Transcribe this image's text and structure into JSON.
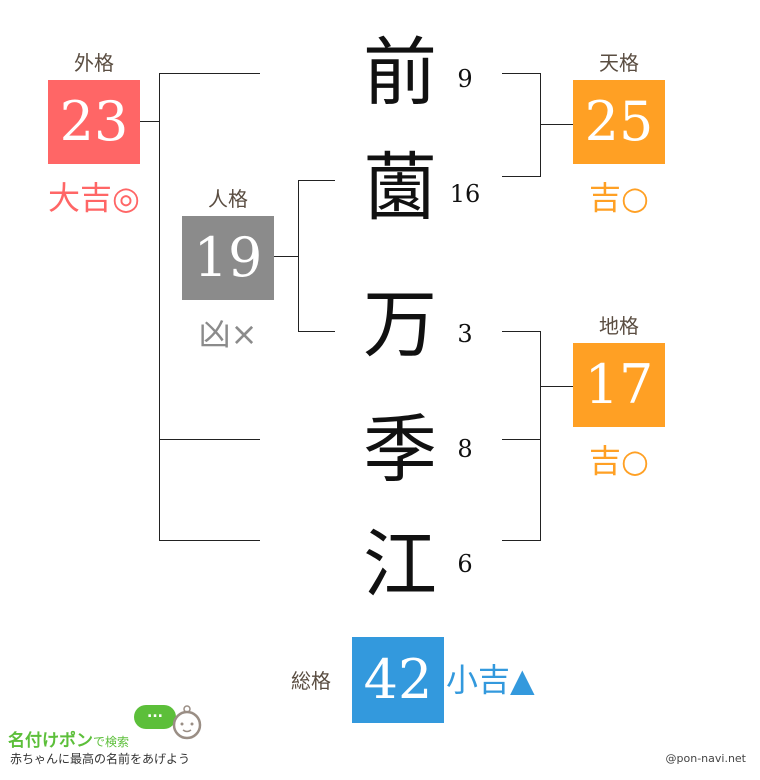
{
  "colors": {
    "great": "#ff6666",
    "good": "#ffa024",
    "bad": "#8b8b8b",
    "small": "#3399dd",
    "label": "#5a4d41",
    "logo_green": "#5cbf3a"
  },
  "name": {
    "chars": [
      "前",
      "薗",
      "万",
      "季",
      "江"
    ],
    "strokes": [
      "9",
      "16",
      "3",
      "8",
      "6"
    ]
  },
  "gaikaku": {
    "label": "外格",
    "value": "23",
    "result": "大吉◎"
  },
  "jinkaku": {
    "label": "人格",
    "value": "19",
    "result": "凶×"
  },
  "tenkaku": {
    "label": "天格",
    "value": "25",
    "result": "吉○"
  },
  "chikaku": {
    "label": "地格",
    "value": "17",
    "result": "吉○"
  },
  "soukaku": {
    "label": "総格",
    "value": "42",
    "result": "小吉▲"
  },
  "footer": {
    "logo": "名付けポン",
    "logo_sub": "で検索",
    "tagline": "赤ちゃんに最高の名前をあげよう",
    "credit": "@pon-navi.net",
    "bubble": "..."
  }
}
